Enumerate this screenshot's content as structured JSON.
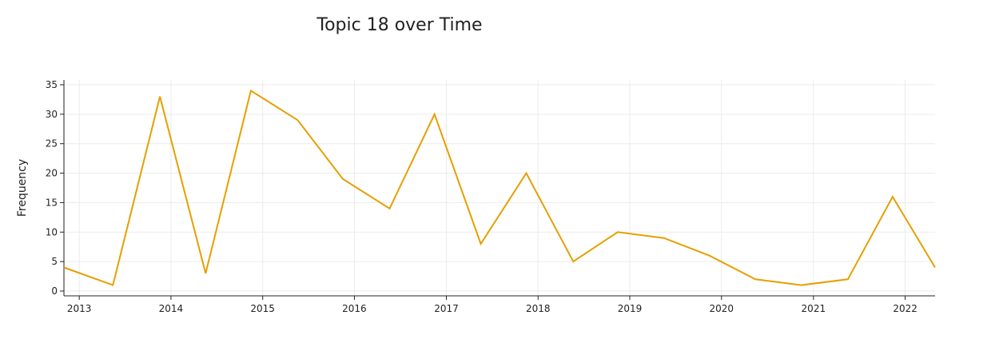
{
  "chart_data": {
    "type": "line",
    "title": "Topic 18 over Time",
    "xlabel": "",
    "ylabel": "Frequency",
    "grid": true,
    "xlim": [
      "2012-11-01",
      "2022-04-30"
    ],
    "ylim": [
      0,
      35
    ],
    "x_ticks": [
      "2013",
      "2014",
      "2015",
      "2016",
      "2017",
      "2018",
      "2019",
      "2020",
      "2021",
      "2022"
    ],
    "y_ticks": [
      0,
      5,
      10,
      15,
      20,
      25,
      30,
      35
    ],
    "series": [
      {
        "name": "",
        "color": "#E69F00",
        "x": [
          "2012-11-01",
          "2013-05-15",
          "2013-11-18",
          "2014-05-19",
          "2014-11-15",
          "2015-05-20",
          "2015-11-16",
          "2016-05-20",
          "2016-11-15",
          "2017-05-18",
          "2017-11-15",
          "2018-05-21",
          "2018-11-14",
          "2019-05-17",
          "2019-11-15",
          "2020-05-15",
          "2020-11-14",
          "2021-05-18",
          "2021-11-12",
          "2022-04-30"
        ],
        "y": [
          4,
          1,
          33,
          3,
          34,
          29,
          19,
          14,
          30,
          8,
          20,
          5,
          10,
          9,
          6,
          2,
          1,
          2,
          16,
          4
        ]
      }
    ]
  }
}
